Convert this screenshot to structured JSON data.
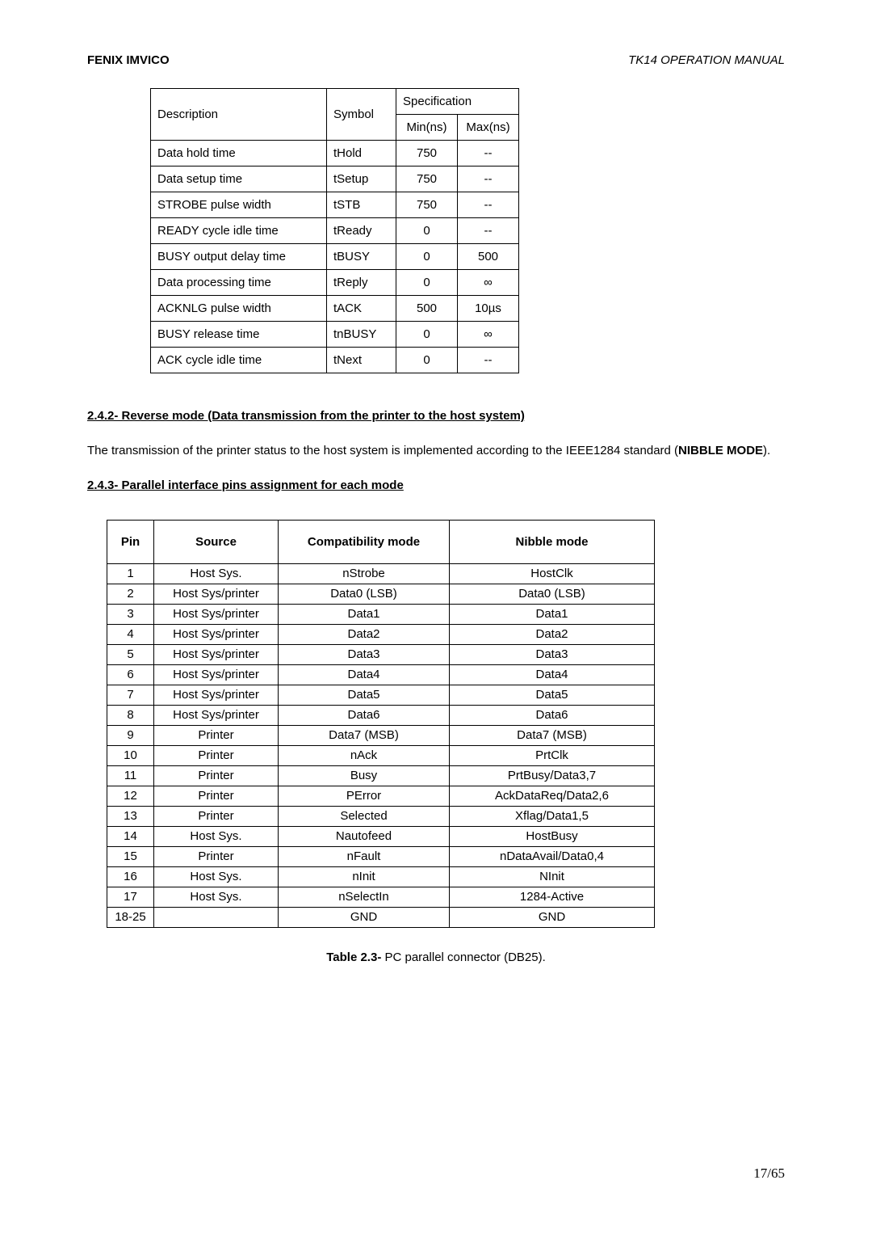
{
  "header": {
    "left": "FENIX IMVICO",
    "right": "TK14   OPERATION  MANUAL"
  },
  "table1": {
    "headers": {
      "description": "Description",
      "symbol": "Symbol",
      "specification": "Specification",
      "min": "Min(ns)",
      "max": "Max(ns)"
    },
    "rows": [
      {
        "desc": "Data hold time",
        "sym": "tHold",
        "min": "750",
        "max": "--"
      },
      {
        "desc": "Data setup time",
        "sym": "tSetup",
        "min": "750",
        "max": "--"
      },
      {
        "desc": "STROBE pulse width",
        "sym": "tSTB",
        "min": "750",
        "max": "--"
      },
      {
        "desc": "READY cycle idle time",
        "sym": "tReady",
        "min": "0",
        "max": "--"
      },
      {
        "desc": "BUSY output delay time",
        "sym": "tBUSY",
        "min": "0",
        "max": "500"
      },
      {
        "desc": "Data processing time",
        "sym": "tReply",
        "min": "0",
        "max": "∞"
      },
      {
        "desc": "ACKNLG pulse width",
        "sym": "tACK",
        "min": "500",
        "max": "10µs"
      },
      {
        "desc": "BUSY release time",
        "sym": "tnBUSY",
        "min": "0",
        "max": "∞"
      },
      {
        "desc": "ACK cycle idle time",
        "sym": "tNext",
        "min": "0",
        "max": "--"
      }
    ]
  },
  "section242": {
    "title": "2.4.2- Reverse mode (Data transmission from the printer to the host system)",
    "para_pre": "The transmission of the printer status to the host system is implemented according to the IEEE1284 standard (",
    "para_bold": "NIBBLE MODE",
    "para_post": ")."
  },
  "section243": {
    "title": "2.4.3- Parallel interface pins assignment for each mode"
  },
  "table2": {
    "headers": {
      "pin": "Pin",
      "source": "Source",
      "compat": "Compatibility mode",
      "nibble": "Nibble mode"
    },
    "rows": [
      {
        "pin": "1",
        "src": "Host Sys.",
        "comp": "nStrobe",
        "nib": "HostClk"
      },
      {
        "pin": "2",
        "src": "Host Sys/printer",
        "comp": "Data0 (LSB)",
        "nib": "Data0 (LSB)"
      },
      {
        "pin": "3",
        "src": "Host Sys/printer",
        "comp": "Data1",
        "nib": "Data1"
      },
      {
        "pin": "4",
        "src": "Host Sys/printer",
        "comp": "Data2",
        "nib": "Data2"
      },
      {
        "pin": "5",
        "src": "Host Sys/printer",
        "comp": "Data3",
        "nib": "Data3"
      },
      {
        "pin": "6",
        "src": "Host Sys/printer",
        "comp": "Data4",
        "nib": "Data4"
      },
      {
        "pin": "7",
        "src": "Host Sys/printer",
        "comp": "Data5",
        "nib": "Data5"
      },
      {
        "pin": "8",
        "src": "Host Sys/printer",
        "comp": "Data6",
        "nib": "Data6"
      },
      {
        "pin": "9",
        "src": "Printer",
        "comp": "Data7 (MSB)",
        "nib": "Data7 (MSB)"
      },
      {
        "pin": "10",
        "src": "Printer",
        "comp": "nAck",
        "nib": "PrtClk"
      },
      {
        "pin": "11",
        "src": "Printer",
        "comp": "Busy",
        "nib": "PrtBusy/Data3,7"
      },
      {
        "pin": "12",
        "src": "Printer",
        "comp": "PError",
        "nib": "AckDataReq/Data2,6"
      },
      {
        "pin": "13",
        "src": "Printer",
        "comp": "Selected",
        "nib": "Xflag/Data1,5"
      },
      {
        "pin": "14",
        "src": "Host Sys.",
        "comp": "Nautofeed",
        "nib": "HostBusy"
      },
      {
        "pin": "15",
        "src": "Printer",
        "comp": "nFault",
        "nib": "nDataAvail/Data0,4"
      },
      {
        "pin": "16",
        "src": "Host Sys.",
        "comp": "nInit",
        "nib": "NInit"
      },
      {
        "pin": "17",
        "src": "Host Sys.",
        "comp": "nSelectIn",
        "nib": "1284-Active"
      },
      {
        "pin": "18-25",
        "src": "",
        "comp": "GND",
        "nib": "GND"
      }
    ]
  },
  "caption": {
    "bold": "Table 2.3-",
    "rest": " PC parallel connector (DB25)."
  },
  "footer": {
    "page": "17/65"
  }
}
